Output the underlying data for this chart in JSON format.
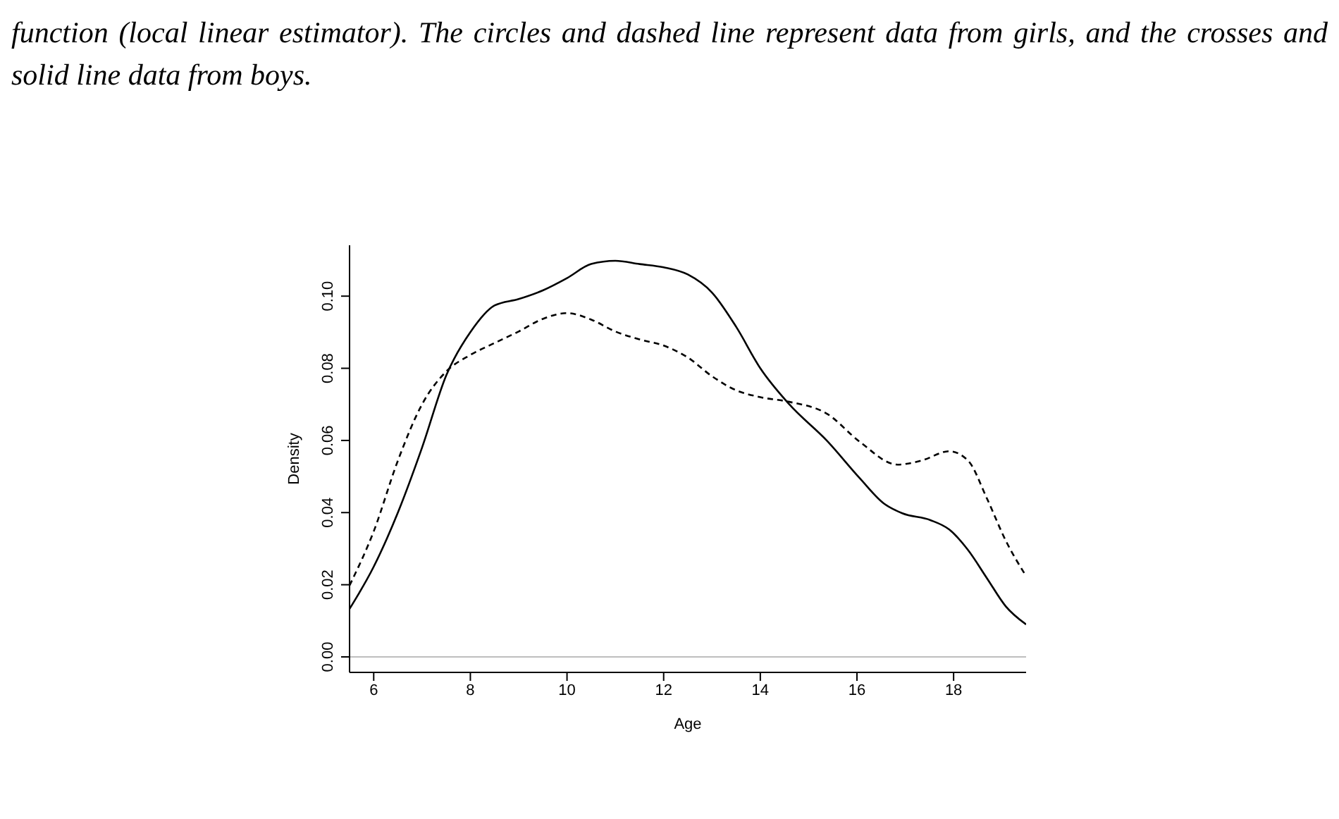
{
  "chart_data": {
    "type": "line",
    "xlabel": "Age",
    "ylabel": "Density",
    "annotations": [
      "function (local linear estimator). The circles and dashed line represent data from girls, and the crosses and solid line data from boys."
    ],
    "xlim": [
      5.5,
      19.5
    ],
    "xticks": [
      6,
      8,
      10,
      12,
      14,
      16,
      18
    ],
    "ylim": [
      -0.0043,
      0.1141
    ],
    "yticks": [
      {
        "value": 0,
        "label": "0.00"
      },
      {
        "value": 0.02,
        "label": "0.02"
      },
      {
        "value": 0.04,
        "label": "0.04"
      },
      {
        "value": 0.06,
        "label": "0.06"
      },
      {
        "value": 0.08,
        "label": "0.08"
      },
      {
        "value": 0.1,
        "label": "0.10"
      }
    ],
    "grid": false,
    "legend": false,
    "marker": "none",
    "ref_lines": [
      {
        "axis": "y",
        "value": 0,
        "color": "#bebebe"
      }
    ],
    "series": [
      {
        "color": "#000000",
        "line_style": "solid",
        "x": [
          5.5,
          6,
          6.5,
          7,
          7.5,
          8,
          8.5,
          9,
          9.5,
          10,
          10.5,
          11,
          11.5,
          12,
          12.5,
          13,
          13.5,
          14,
          14.6,
          15.38,
          16.06,
          16.55,
          16.94,
          17.52,
          17.91,
          18.3,
          18.69,
          19.08,
          19.5
        ],
        "values": [
          0.0133,
          0.025,
          0.04,
          0.058,
          0.078,
          0.09,
          0.0974,
          0.0992,
          0.1016,
          0.105,
          0.1089,
          0.1098,
          0.1089,
          0.108,
          0.106,
          0.101,
          0.0915,
          0.08,
          0.07,
          0.0599,
          0.0495,
          0.0426,
          0.0398,
          0.0379,
          0.0353,
          0.0296,
          0.0218,
          0.014,
          0.009
        ]
      },
      {
        "color": "#000000",
        "line_style": "dashed",
        "x": [
          5.5,
          6,
          6.5,
          7,
          7.5,
          8,
          8.5,
          9,
          9.5,
          10,
          10.5,
          11,
          11.5,
          12,
          12.5,
          13,
          13.5,
          14,
          14.6,
          15.38,
          16.06,
          16.84,
          17.33,
          17.91,
          18.3,
          18.69,
          19.08,
          19.5
        ],
        "values": [
          0.0198,
          0.0348,
          0.0544,
          0.07,
          0.0791,
          0.0837,
          0.087,
          0.0902,
          0.0937,
          0.0953,
          0.0935,
          0.0902,
          0.088,
          0.0863,
          0.083,
          0.0778,
          0.0739,
          0.072,
          0.0707,
          0.0674,
          0.0596,
          0.0533,
          0.0544,
          0.057,
          0.0544,
          0.0439,
          0.0322,
          0.0224
        ]
      }
    ]
  }
}
